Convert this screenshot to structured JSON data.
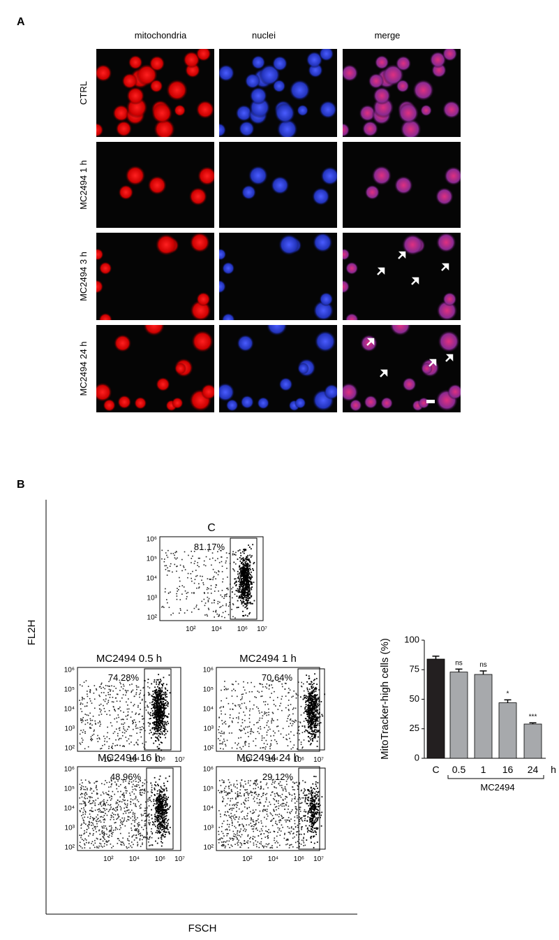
{
  "panel_a": {
    "label": "A",
    "columns": [
      "mitochondria",
      "nuclei",
      "merge"
    ],
    "rows": [
      "CTRL",
      "MC2494 1 h",
      "MC2494 3 h",
      "MC2494 24 h"
    ]
  },
  "panel_b": {
    "label": "B",
    "y_label": "FL2H",
    "x_label": "FSCH",
    "plot_yticks": [
      "10⁶",
      "10⁵",
      "10⁴",
      "10³",
      "10²"
    ],
    "plot_xticks": [
      "10²",
      "10⁴",
      "10⁶",
      "10⁷"
    ],
    "plots": [
      {
        "title": "C",
        "gate_percent": "81.17%"
      },
      {
        "title": "MC2494 0.5 h",
        "gate_percent": "74.28%"
      },
      {
        "title": "MC2494 1 h",
        "gate_percent": "70.64%"
      },
      {
        "title": "MC2494 16 h",
        "gate_percent": "48.96%"
      },
      {
        "title": "MC2494 24 h",
        "gate_percent": "29.12%"
      }
    ]
  },
  "chart_data": {
    "type": "bar",
    "ylabel": "MitoTracker-high cells (%)",
    "categories": [
      "C",
      "0.5",
      "1",
      "16",
      "24"
    ],
    "unit": "h",
    "group_label": "MC2494",
    "values": [
      84,
      73,
      71,
      47,
      29
    ],
    "errors": [
      2.5,
      2.5,
      3,
      2.5,
      1
    ],
    "annotations": [
      null,
      "ns",
      "ns",
      "*",
      "***"
    ],
    "colors": [
      "#231f20",
      "#a7a9ac",
      "#a7a9ac",
      "#a7a9ac",
      "#a7a9ac"
    ],
    "ylim": [
      0,
      100
    ],
    "yticks": [
      0,
      25,
      50,
      75,
      100
    ]
  }
}
